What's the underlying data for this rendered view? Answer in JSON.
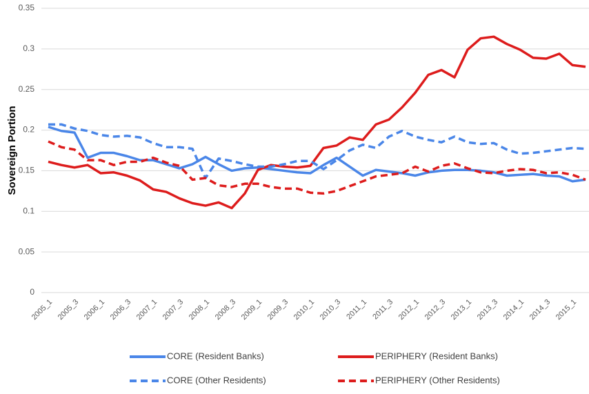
{
  "chart_data": {
    "type": "line",
    "y_label": "Sovereign Portion",
    "categories": [
      "2005_1",
      null,
      "2005_3",
      null,
      "2006_1",
      null,
      "2006_3",
      null,
      "2007_1",
      null,
      "2007_3",
      null,
      "2008_1",
      null,
      "2008_3",
      null,
      "2009_1",
      null,
      "2009_3",
      null,
      "2010_1",
      null,
      "2010_3",
      null,
      "2011_1",
      null,
      "2011_3",
      null,
      "2012_1",
      null,
      "2012_3",
      null,
      "2013_1",
      null,
      "2013_3",
      null,
      "2014_1",
      null,
      "2014_3",
      null,
      "2015_1",
      null
    ],
    "series": [
      {
        "name": "CORE (Resident Banks)",
        "color": "#4a86e8",
        "dashed": false,
        "values": [
          0.204,
          0.199,
          0.197,
          0.166,
          0.172,
          0.172,
          0.168,
          0.163,
          0.163,
          0.158,
          0.153,
          0.158,
          0.167,
          0.158,
          0.15,
          0.153,
          0.154,
          0.152,
          0.15,
          0.148,
          0.147,
          0.157,
          0.166,
          0.155,
          0.144,
          0.151,
          0.149,
          0.147,
          0.144,
          0.148,
          0.15,
          0.151,
          0.151,
          0.15,
          0.148,
          0.144,
          0.145,
          0.146,
          0.144,
          0.143,
          0.137,
          0.139
        ]
      },
      {
        "name": "PERIPHERY (Resident Banks)",
        "color": "#dd1c1c",
        "dashed": false,
        "values": [
          0.161,
          0.157,
          0.154,
          0.157,
          0.147,
          0.148,
          0.144,
          0.138,
          0.127,
          0.124,
          0.116,
          0.11,
          0.107,
          0.111,
          0.104,
          0.122,
          0.151,
          0.157,
          0.155,
          0.154,
          0.156,
          0.178,
          0.181,
          0.191,
          0.188,
          0.207,
          0.213,
          0.228,
          0.246,
          0.268,
          0.274,
          0.265,
          0.299,
          0.313,
          0.315,
          0.306,
          0.299,
          0.289,
          0.288,
          0.294,
          0.28,
          0.278
        ]
      },
      {
        "name": "CORE (Other Residents)",
        "color": "#4a86e8",
        "dashed": true,
        "values": [
          0.207,
          0.207,
          0.202,
          0.199,
          0.194,
          0.192,
          0.193,
          0.191,
          0.184,
          0.179,
          0.179,
          0.177,
          0.141,
          0.165,
          0.162,
          0.158,
          0.155,
          0.155,
          0.158,
          0.162,
          0.162,
          0.152,
          0.163,
          0.175,
          0.182,
          0.178,
          0.192,
          0.199,
          0.192,
          0.188,
          0.185,
          0.192,
          0.185,
          0.183,
          0.184,
          0.176,
          0.171,
          0.172,
          0.174,
          0.176,
          0.178,
          0.177
        ]
      },
      {
        "name": "PERIPHERY (Other Residents)",
        "color": "#dd1c1c",
        "dashed": true,
        "values": [
          0.186,
          0.179,
          0.176,
          0.163,
          0.163,
          0.157,
          0.161,
          0.161,
          0.166,
          0.16,
          0.156,
          0.139,
          0.141,
          0.132,
          0.13,
          0.134,
          0.134,
          0.13,
          0.128,
          0.128,
          0.123,
          0.122,
          0.125,
          0.131,
          0.137,
          0.143,
          0.145,
          0.147,
          0.155,
          0.149,
          0.156,
          0.159,
          0.153,
          0.148,
          0.147,
          0.15,
          0.152,
          0.151,
          0.147,
          0.148,
          0.145,
          0.139
        ]
      }
    ],
    "ylim": [
      0,
      0.35
    ],
    "yticks": [
      0,
      0.05,
      0.1,
      0.15,
      0.2,
      0.25,
      0.3,
      0.35
    ],
    "grid": true
  }
}
